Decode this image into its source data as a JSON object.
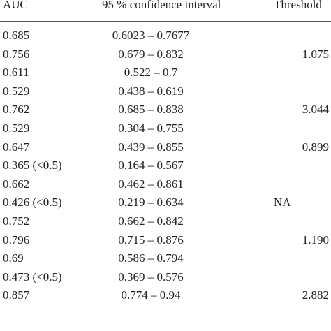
{
  "header": {
    "auc": "AUC",
    "ci": "95 % confidence interval",
    "threshold": "Threshold"
  },
  "rows": [
    {
      "auc": "0.685",
      "ci": "0.6023 – 0.7677",
      "threshold": ""
    },
    {
      "auc": "0.756",
      "ci": "0.679 – 0.832",
      "threshold": "1.075"
    },
    {
      "auc": "0.611",
      "ci": "0.522 – 0.7",
      "threshold": ""
    },
    {
      "auc": "0.529",
      "ci": "0.438 – 0.619",
      "threshold": ""
    },
    {
      "auc": "0.762",
      "ci": "0.685 – 0.838",
      "threshold": "3.044"
    },
    {
      "auc": "0.529",
      "ci": "0.304 – 0.755",
      "threshold": ""
    },
    {
      "auc": "0.647",
      "ci": "0.439 – 0.855",
      "threshold": "0.899"
    },
    {
      "auc": "0.365 (<0.5)",
      "ci": "0.164 – 0.567",
      "threshold": ""
    },
    {
      "auc": "0.662",
      "ci": "0.462 – 0.861",
      "threshold": ""
    },
    {
      "auc": "0.426 (<0.5)",
      "ci": "0.219 – 0.634",
      "threshold": "NA"
    },
    {
      "auc": "0.752",
      "ci": "0.662 – 0.842",
      "threshold": ""
    },
    {
      "auc": "0.796",
      "ci": "0.715 – 0.876",
      "threshold": "1.190"
    },
    {
      "auc": "0.69",
      "ci": "0.586 – 0.794",
      "threshold": ""
    },
    {
      "auc": "0.473 (<0.5)",
      "ci": "0.369 – 0.576",
      "threshold": ""
    },
    {
      "auc": "0.857",
      "ci": "0.774 – 0.94",
      "threshold": "2.882"
    }
  ]
}
